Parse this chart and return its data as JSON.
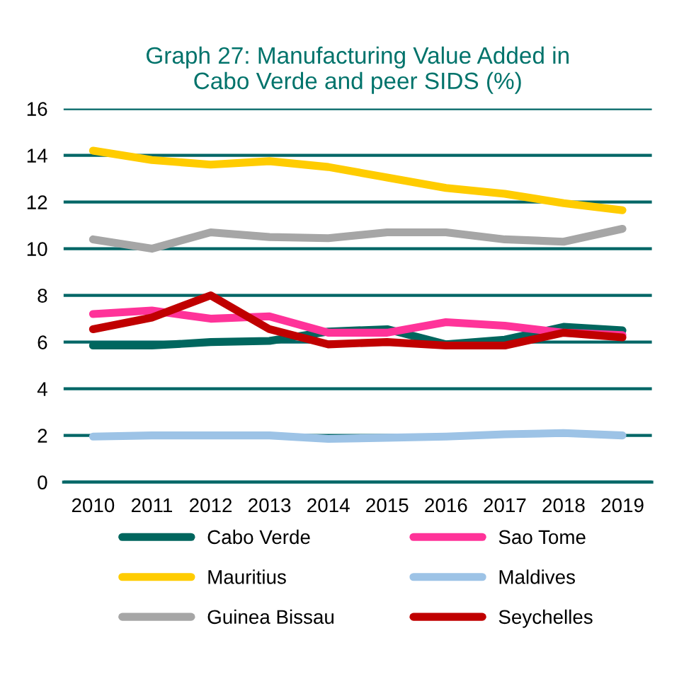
{
  "chart_data": {
    "type": "line",
    "title": "Graph 27: Manufacturing Value Added in\nCabo Verde and peer SIDS (%)",
    "categories": [
      "2010",
      "2011",
      "2012",
      "2013",
      "2014",
      "2015",
      "2016",
      "2017",
      "2018",
      "2019"
    ],
    "series": [
      {
        "name": "Cabo Verde",
        "color": "#00665e",
        "values": [
          5.85,
          5.85,
          6.0,
          6.05,
          6.45,
          6.55,
          5.9,
          6.1,
          6.65,
          6.5
        ]
      },
      {
        "name": "Mauritius",
        "color": "#ffcc00",
        "values": [
          14.2,
          13.8,
          13.6,
          13.75,
          13.5,
          13.05,
          12.6,
          12.35,
          11.95,
          11.65
        ]
      },
      {
        "name": "Guinea Bissau",
        "color": "#a6a6a6",
        "values": [
          10.4,
          10.0,
          10.7,
          10.5,
          10.45,
          10.7,
          10.7,
          10.4,
          10.3,
          10.85
        ]
      },
      {
        "name": "Sao Tome",
        "color": "#ff3399",
        "values": [
          7.2,
          7.35,
          7.0,
          7.1,
          6.4,
          6.4,
          6.85,
          6.7,
          6.4,
          6.3
        ]
      },
      {
        "name": "Maldives",
        "color": "#9dc3e6",
        "values": [
          1.95,
          2.0,
          2.0,
          2.0,
          1.85,
          1.9,
          1.95,
          2.05,
          2.1,
          2.0
        ]
      },
      {
        "name": "Seychelles",
        "color": "#c00000",
        "values": [
          6.55,
          7.05,
          8.0,
          6.55,
          5.9,
          6.0,
          5.85,
          5.85,
          6.4,
          6.2
        ]
      }
    ],
    "ylim": [
      0,
      16
    ],
    "yticks": [
      0,
      2,
      4,
      6,
      8,
      10,
      12,
      14,
      16
    ],
    "grid": "y",
    "legend": "bottom",
    "marker": "none",
    "line_style": "solid"
  }
}
